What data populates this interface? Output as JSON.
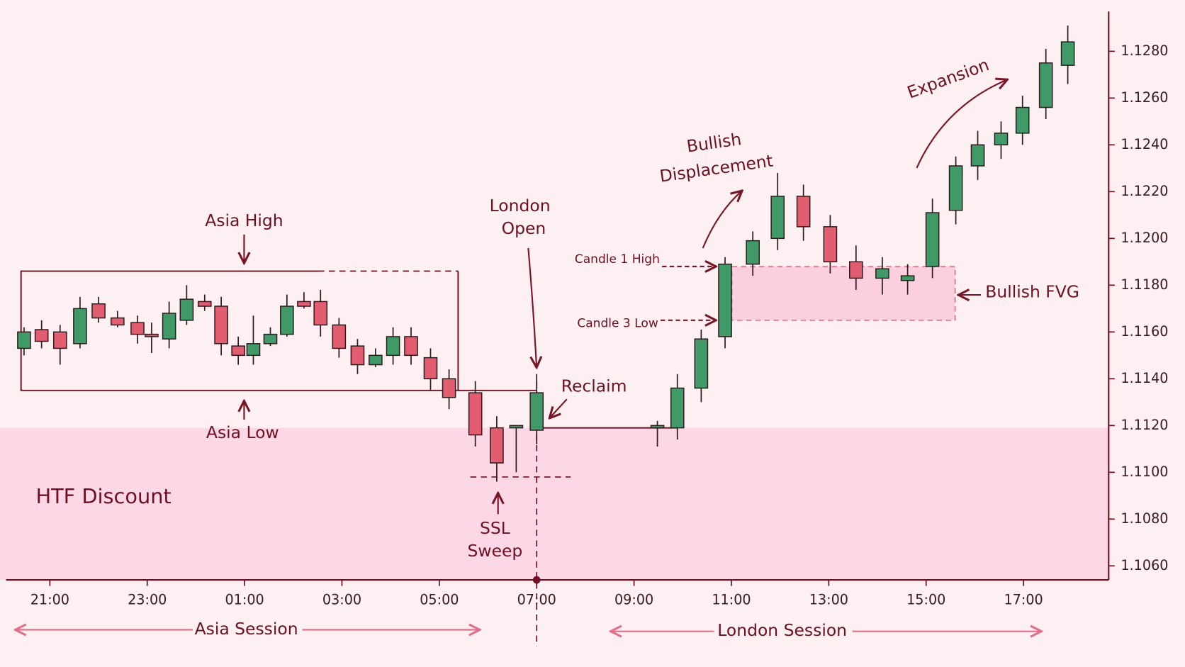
{
  "chart_data": {
    "type": "candlestick",
    "x": [
      20.47,
      20.83,
      21.21,
      21.62,
      22,
      22.39,
      22.8,
      23.09,
      23.45,
      23.81,
      24.18,
      24.52,
      24.87,
      25.18,
      25.53,
      25.87,
      26.22,
      26.56,
      26.94,
      27.32,
      27.69,
      28.05,
      28.42,
      28.82,
      29.2,
      29.74,
      30.18,
      30.58,
      31,
      33.48,
      33.89,
      34.38,
      34.87,
      35.44,
      35.95,
      36.48,
      37.03,
      37.56,
      38.1,
      38.62,
      39.13,
      39.61,
      40.06,
      40.54,
      40.98,
      41.46,
      41.91
    ],
    "open": [
      1.1153,
      1.1161,
      1.116,
      1.1155,
      1.1172,
      1.1166,
      1.1164,
      1.1159,
      1.1157,
      1.1165,
      1.1173,
      1.1171,
      1.1154,
      1.115,
      1.1155,
      1.1159,
      1.1173,
      1.1173,
      1.1163,
      1.1154,
      1.1146,
      1.115,
      1.1158,
      1.1149,
      1.114,
      1.1134,
      1.1119,
      1.1119,
      1.1118,
      1.1119,
      1.1119,
      1.1136,
      1.1158,
      1.1189,
      1.12,
      1.1218,
      1.1205,
      1.119,
      1.1183,
      1.1182,
      1.1188,
      1.1212,
      1.1231,
      1.124,
      1.1245,
      1.1256,
      1.1274
    ],
    "high": [
      1.1162,
      1.1165,
      1.1163,
      1.1175,
      1.1175,
      1.1169,
      1.1167,
      1.1164,
      1.1173,
      1.118,
      1.1176,
      1.1175,
      1.1158,
      1.1167,
      1.1162,
      1.1176,
      1.1177,
      1.1178,
      1.1166,
      1.1157,
      1.1153,
      1.1162,
      1.1162,
      1.1153,
      1.1144,
      1.1139,
      1.1124,
      1.112,
      1.1142,
      1.1122,
      1.1142,
      1.1161,
      1.1192,
      1.1203,
      1.1228,
      1.1223,
      1.121,
      1.1197,
      1.1192,
      1.1189,
      1.1217,
      1.1235,
      1.1246,
      1.125,
      1.1261,
      1.1281,
      1.1291
    ],
    "low": [
      1.115,
      1.1153,
      1.1146,
      1.1153,
      1.1164,
      1.1162,
      1.1155,
      1.1151,
      1.1153,
      1.1163,
      1.1169,
      1.115,
      1.1146,
      1.1146,
      1.1154,
      1.1158,
      1.117,
      1.1158,
      1.1149,
      1.1142,
      1.1145,
      1.1146,
      1.1146,
      1.1135,
      1.1127,
      1.1111,
      1.1096,
      1.11,
      1.1112,
      1.1111,
      1.1114,
      1.113,
      1.1153,
      1.1184,
      1.1195,
      1.1199,
      1.1185,
      1.1178,
      1.1176,
      1.1176,
      1.1183,
      1.1206,
      1.1225,
      1.1234,
      1.124,
      1.1251,
      1.1266
    ],
    "close": [
      1.116,
      1.1156,
      1.1153,
      1.117,
      1.1166,
      1.1163,
      1.1159,
      1.1158,
      1.1168,
      1.1174,
      1.1171,
      1.1155,
      1.115,
      1.1155,
      1.1159,
      1.1171,
      1.1171,
      1.1163,
      1.1153,
      1.1146,
      1.115,
      1.1158,
      1.115,
      1.114,
      1.1132,
      1.1116,
      1.1104,
      1.112,
      1.1134,
      1.112,
      1.1136,
      1.1157,
      1.1189,
      1.1199,
      1.1218,
      1.1205,
      1.119,
      1.1183,
      1.1187,
      1.1184,
      1.1211,
      1.1231,
      1.124,
      1.1245,
      1.1256,
      1.1275,
      1.1284
    ],
    "up_color": "#3f9a68",
    "down_color": "#e35d70",
    "xlim": [
      20.1,
      42.75
    ],
    "xticks": [
      {
        "value": 21,
        "label": "21:00"
      },
      {
        "value": 23,
        "label": "23:00"
      },
      {
        "value": 25,
        "label": "01:00"
      },
      {
        "value": 27,
        "label": "03:00"
      },
      {
        "value": 29,
        "label": "05:00"
      },
      {
        "value": 31,
        "label": "07:00"
      },
      {
        "value": 33,
        "label": "09:00"
      },
      {
        "value": 35,
        "label": "11:00"
      },
      {
        "value": 37,
        "label": "13:00"
      },
      {
        "value": 39,
        "label": "15:00"
      },
      {
        "value": 41,
        "label": "17:00"
      }
    ],
    "ylim": [
      1.1054,
      1.1297
    ],
    "yticks": [
      {
        "value": 1.106,
        "label": "1.1060"
      },
      {
        "value": 1.108,
        "label": "1.1080"
      },
      {
        "value": 1.11,
        "label": "1.1100"
      },
      {
        "value": 1.112,
        "label": "1.1120"
      },
      {
        "value": 1.114,
        "label": "1.1140"
      },
      {
        "value": 1.116,
        "label": "1.1160"
      },
      {
        "value": 1.118,
        "label": "1.1180"
      },
      {
        "value": 1.12,
        "label": "1.1200"
      },
      {
        "value": 1.122,
        "label": "1.1220"
      },
      {
        "value": 1.124,
        "label": "1.1240"
      },
      {
        "value": 1.126,
        "label": "1.1260"
      },
      {
        "value": 1.128,
        "label": "1.1280"
      }
    ],
    "levels": {
      "asia_high": 1.1186,
      "asia_low": 1.1135,
      "htf_discount_top": 1.1119,
      "ssl_sweep": 1.1098,
      "fvg_low": 1.1165,
      "fvg_high": 1.1188
    },
    "annotations": {
      "asia_high": "Asia High",
      "asia_low": "Asia Low",
      "london_open": [
        "London",
        "Open"
      ],
      "reclaim": "Reclaim",
      "ssl_sweep": [
        "SSL",
        "Sweep"
      ],
      "htf_discount": "HTF Discount",
      "bullish_displacement": [
        "Bullish",
        "Displacement"
      ],
      "candle_1_high": "Candle 1 High",
      "candle_3_low": "Candle 3 Low",
      "bullish_fvg": "Bullish FVG",
      "expansion": "Expansion"
    },
    "sessions": [
      "Asia Session",
      "London Session"
    ]
  }
}
